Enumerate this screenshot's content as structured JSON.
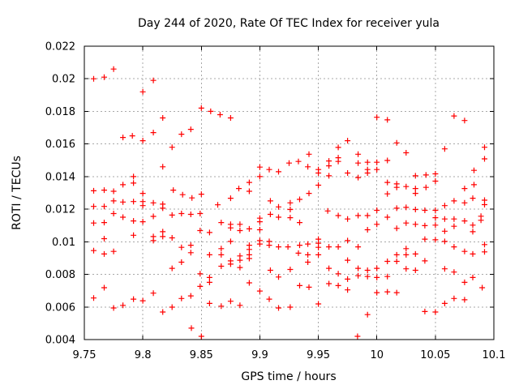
{
  "figure": {
    "background": "#ffffff",
    "axis_color": "#000000",
    "grid_color": "#a8a8a8",
    "marker_color": "#ff0000"
  },
  "chart_data": {
    "type": "scatter",
    "title": "Day 244 of 2020, Rate Of TEC Index for receiver yula",
    "xlabel": "GPS time / hours",
    "ylabel": "ROTI / TECUs",
    "xlim": [
      9.75,
      10.1
    ],
    "ylim": [
      0.004,
      0.022
    ],
    "grid": true,
    "legend": "none",
    "marker": "plus",
    "xticks": {
      "values": [
        9.75,
        9.8,
        9.85,
        9.9,
        9.95,
        10,
        10.05,
        10.1
      ],
      "labels": [
        "9.75",
        "9.8",
        "9.85",
        "9.9",
        "9.95",
        "10",
        "10.05",
        "10.1"
      ]
    },
    "yticks": {
      "values": [
        0.004,
        0.006,
        0.008,
        0.01,
        0.012,
        0.014,
        0.016,
        0.018,
        0.02,
        0.022
      ],
      "labels": [
        "0.004",
        "0.006",
        "0.008",
        "0.01",
        "0.012",
        "0.014",
        "0.016",
        "0.018",
        "0.02",
        "0.022"
      ]
    },
    "points": [
      [
        9.758,
        0.02
      ],
      [
        9.767,
        0.0201
      ],
      [
        9.775,
        0.0206
      ],
      [
        9.809,
        0.0199
      ],
      [
        9.8,
        0.0192
      ],
      [
        9.85,
        0.0182
      ],
      [
        9.858,
        0.018
      ],
      [
        9.866,
        0.0178
      ],
      [
        9.875,
        0.0176
      ],
      [
        9.817,
        0.0176
      ],
      [
        9.809,
        0.0167
      ],
      [
        9.783,
        0.0164
      ],
      [
        9.791,
        0.0165
      ],
      [
        9.8,
        0.0162
      ],
      [
        9.833,
        0.0166
      ],
      [
        9.841,
        0.0169
      ],
      [
        9.825,
        0.0158
      ],
      [
        9.817,
        0.0146
      ],
      [
        9.792,
        0.014
      ],
      [
        9.792,
        0.0136
      ],
      [
        9.783,
        0.0135
      ],
      [
        9.758,
        0.01313
      ],
      [
        9.767,
        0.01317
      ],
      [
        9.775,
        0.0131
      ],
      [
        9.8,
        0.01297
      ],
      [
        9.826,
        0.01317
      ],
      [
        9.834,
        0.01289
      ],
      [
        9.842,
        0.01269
      ],
      [
        9.85,
        0.01292
      ],
      [
        9.775,
        0.01251
      ],
      [
        9.783,
        0.01244
      ],
      [
        9.792,
        0.01247
      ],
      [
        9.8,
        0.01247
      ],
      [
        9.8,
        0.01222
      ],
      [
        9.809,
        0.01239
      ],
      [
        9.817,
        0.01231
      ],
      [
        9.817,
        0.01206
      ],
      [
        9.758,
        0.01217
      ],
      [
        9.767,
        0.01217
      ],
      [
        9.864,
        0.01227
      ],
      [
        9.775,
        0.01173
      ],
      [
        9.783,
        0.01151
      ],
      [
        9.792,
        0.01128
      ],
      [
        9.8,
        0.01123
      ],
      [
        9.809,
        0.01156
      ],
      [
        9.825,
        0.01164
      ],
      [
        9.833,
        0.01173
      ],
      [
        9.841,
        0.01168
      ],
      [
        9.849,
        0.01173
      ],
      [
        9.758,
        0.01115
      ],
      [
        9.767,
        0.01118
      ],
      [
        9.792,
        0.0104
      ],
      [
        9.817,
        0.01062
      ],
      [
        9.809,
        0.01032
      ],
      [
        9.817,
        0.01032
      ],
      [
        9.825,
        0.01024
      ],
      [
        9.809,
        0.01007
      ],
      [
        9.767,
        0.01019
      ],
      [
        9.849,
        0.01069
      ],
      [
        9.857,
        0.01057
      ],
      [
        9.758,
        0.00946
      ],
      [
        9.767,
        0.00925
      ],
      [
        9.775,
        0.00941
      ],
      [
        9.833,
        0.00966
      ],
      [
        9.841,
        0.00979
      ],
      [
        9.841,
        0.00933
      ],
      [
        9.857,
        0.0092
      ],
      [
        9.833,
        0.00875
      ],
      [
        9.825,
        0.00837
      ],
      [
        9.849,
        0.00804
      ],
      [
        9.857,
        0.00781
      ],
      [
        9.857,
        0.00751
      ],
      [
        9.849,
        0.00726
      ],
      [
        9.767,
        0.00718
      ],
      [
        9.758,
        0.00655
      ],
      [
        9.809,
        0.00685
      ],
      [
        9.792,
        0.00648
      ],
      [
        9.8,
        0.00638
      ],
      [
        9.833,
        0.00652
      ],
      [
        9.841,
        0.00668
      ],
      [
        9.775,
        0.00594
      ],
      [
        9.783,
        0.0061
      ],
      [
        9.817,
        0.00569
      ],
      [
        9.825,
        0.00599
      ],
      [
        9.857,
        0.00622
      ],
      [
        9.8415,
        0.0047
      ],
      [
        9.85,
        0.0042
      ],
      [
        9.975,
        0.0162
      ],
      [
        9.967,
        0.01579
      ],
      [
        9.942,
        0.01537
      ],
      [
        9.967,
        0.01516
      ],
      [
        9.967,
        0.01493
      ],
      [
        9.984,
        0.01537
      ],
      [
        9.959,
        0.01496
      ],
      [
        9.959,
        0.01466
      ],
      [
        9.933,
        0.01493
      ],
      [
        9.925,
        0.01483
      ],
      [
        9.941,
        0.0146
      ],
      [
        9.984,
        0.01483
      ],
      [
        9.9,
        0.01458
      ],
      [
        9.908,
        0.01443
      ],
      [
        9.916,
        0.0143
      ],
      [
        9.95,
        0.01443
      ],
      [
        9.95,
        0.01422
      ],
      [
        9.959,
        0.01405
      ],
      [
        9.9,
        0.014
      ],
      [
        9.975,
        0.01422
      ],
      [
        9.984,
        0.01394
      ],
      [
        9.95,
        0.01347
      ],
      [
        9.882,
        0.01327
      ],
      [
        9.891,
        0.01364
      ],
      [
        9.891,
        0.0131
      ],
      [
        9.942,
        0.01297
      ],
      [
        9.875,
        0.01267
      ],
      [
        9.934,
        0.0126
      ],
      [
        9.909,
        0.01251
      ],
      [
        9.926,
        0.01239
      ],
      [
        9.916,
        0.01214
      ],
      [
        9.926,
        0.01198
      ],
      [
        9.958,
        0.01189
      ],
      [
        9.909,
        0.01168
      ],
      [
        9.916,
        0.01151
      ],
      [
        9.926,
        0.01148
      ],
      [
        9.967,
        0.01161
      ],
      [
        9.975,
        0.0114
      ],
      [
        9.984,
        0.01161
      ],
      [
        9.9,
        0.01145
      ],
      [
        9.9,
        0.01123
      ],
      [
        9.867,
        0.01118
      ],
      [
        9.875,
        0.01107
      ],
      [
        9.875,
        0.01085
      ],
      [
        9.883,
        0.01107
      ],
      [
        9.891,
        0.01079
      ],
      [
        9.883,
        0.01069
      ],
      [
        9.9,
        0.01074
      ],
      [
        9.934,
        0.01118
      ],
      [
        9.875,
        0.01002
      ],
      [
        9.891,
        0.00979
      ],
      [
        9.891,
        0.00953
      ],
      [
        9.9,
        0.01007
      ],
      [
        9.9,
        0.00986
      ],
      [
        9.908,
        0.01002
      ],
      [
        9.908,
        0.00979
      ],
      [
        9.916,
        0.00969
      ],
      [
        9.924,
        0.00969
      ],
      [
        9.934,
        0.00979
      ],
      [
        9.941,
        0.00986
      ],
      [
        9.95,
        0.01016
      ],
      [
        9.95,
        0.00991
      ],
      [
        9.95,
        0.00966
      ],
      [
        9.959,
        0.00969
      ],
      [
        9.967,
        0.00969
      ],
      [
        9.975,
        0.01007
      ],
      [
        9.984,
        0.00969
      ],
      [
        9.933,
        0.0093
      ],
      [
        9.941,
        0.0092
      ],
      [
        9.95,
        0.0092
      ],
      [
        9.975,
        0.00887
      ],
      [
        9.941,
        0.00875
      ],
      [
        9.867,
        0.00958
      ],
      [
        9.867,
        0.0092
      ],
      [
        9.875,
        0.00883
      ],
      [
        9.875,
        0.00863
      ],
      [
        9.883,
        0.00913
      ],
      [
        9.883,
        0.00887
      ],
      [
        9.891,
        0.0092
      ],
      [
        9.891,
        0.00897
      ],
      [
        9.867,
        0.0085
      ],
      [
        9.883,
        0.00842
      ],
      [
        9.909,
        0.00825
      ],
      [
        9.926,
        0.0083
      ],
      [
        9.916,
        0.00784
      ],
      [
        9.959,
        0.00837
      ],
      [
        9.984,
        0.00837
      ],
      [
        9.984,
        0.00792
      ],
      [
        9.967,
        0.00804
      ],
      [
        9.975,
        0.00771
      ],
      [
        9.891,
        0.00748
      ],
      [
        9.934,
        0.00731
      ],
      [
        9.942,
        0.00721
      ],
      [
        9.959,
        0.00743
      ],
      [
        9.967,
        0.00731
      ],
      [
        9.975,
        0.00705
      ],
      [
        9.9,
        0.00698
      ],
      [
        9.908,
        0.00648
      ],
      [
        9.867,
        0.00605
      ],
      [
        9.875,
        0.00635
      ],
      [
        9.883,
        0.0061
      ],
      [
        9.916,
        0.00594
      ],
      [
        9.926,
        0.00599
      ],
      [
        9.95,
        0.00619
      ],
      [
        9.9835,
        0.0042
      ],
      [
        10.0,
        0.01764
      ],
      [
        10.009,
        0.01748
      ],
      [
        10.066,
        0.01772
      ],
      [
        10.075,
        0.01744
      ],
      [
        10.017,
        0.01607
      ],
      [
        10.025,
        0.01546
      ],
      [
        10.058,
        0.0157
      ],
      [
        10.009,
        0.01499
      ],
      [
        10.092,
        0.01509
      ],
      [
        10.092,
        0.0158
      ],
      [
        9.992,
        0.01488
      ],
      [
        10.0,
        0.01488
      ],
      [
        9.992,
        0.01443
      ],
      [
        9.992,
        0.01422
      ],
      [
        10.0,
        0.01443
      ],
      [
        10.083,
        0.01438
      ],
      [
        10.033,
        0.01405
      ],
      [
        10.042,
        0.0141
      ],
      [
        10.05,
        0.01417
      ],
      [
        10.05,
        0.01372
      ],
      [
        10.009,
        0.01364
      ],
      [
        10.017,
        0.01355
      ],
      [
        10.017,
        0.01334
      ],
      [
        10.025,
        0.01339
      ],
      [
        10.033,
        0.01327
      ],
      [
        10.042,
        0.01334
      ],
      [
        10.075,
        0.01327
      ],
      [
        10.083,
        0.0135
      ],
      [
        10.033,
        0.01297
      ],
      [
        10.009,
        0.01294
      ],
      [
        10.082,
        0.01267
      ],
      [
        10.058,
        0.01222
      ],
      [
        10.066,
        0.01251
      ],
      [
        10.075,
        0.01239
      ],
      [
        10.017,
        0.01206
      ],
      [
        10.025,
        0.01211
      ],
      [
        10.033,
        0.01198
      ],
      [
        10.041,
        0.01193
      ],
      [
        10.05,
        0.01193
      ],
      [
        10.0,
        0.01193
      ],
      [
        9.992,
        0.01161
      ],
      [
        10.0,
        0.01107
      ],
      [
        10.009,
        0.01151
      ],
      [
        10.05,
        0.01148
      ],
      [
        10.05,
        0.01102
      ],
      [
        10.058,
        0.0114
      ],
      [
        10.066,
        0.0114
      ],
      [
        10.066,
        0.01095
      ],
      [
        10.075,
        0.01128
      ],
      [
        10.025,
        0.01115
      ],
      [
        10.033,
        0.01107
      ],
      [
        10.041,
        0.01099
      ],
      [
        10.017,
        0.01082
      ],
      [
        9.992,
        0.01074
      ],
      [
        10.082,
        0.01102
      ],
      [
        10.082,
        0.01062
      ],
      [
        10.058,
        0.01065
      ],
      [
        10.041,
        0.01016
      ],
      [
        10.05,
        0.01012
      ],
      [
        10.058,
        0.01002
      ],
      [
        10.066,
        0.00969
      ],
      [
        10.025,
        0.00958
      ],
      [
        10.075,
        0.00941
      ],
      [
        10.082,
        0.00925
      ],
      [
        10.017,
        0.0092
      ],
      [
        10.017,
        0.0088
      ],
      [
        10.025,
        0.0092
      ],
      [
        10.033,
        0.00925
      ],
      [
        10.009,
        0.0088
      ],
      [
        10.041,
        0.00883
      ],
      [
        10.0,
        0.00837
      ],
      [
        9.992,
        0.00825
      ],
      [
        9.992,
        0.00787
      ],
      [
        10.0,
        0.00781
      ],
      [
        10.009,
        0.00787
      ],
      [
        10.025,
        0.00834
      ],
      [
        10.033,
        0.00825
      ],
      [
        10.058,
        0.00834
      ],
      [
        10.066,
        0.00814
      ],
      [
        10.082,
        0.00781
      ],
      [
        10.075,
        0.00751
      ],
      [
        10.0,
        0.00688
      ],
      [
        10.009,
        0.00693
      ],
      [
        10.017,
        0.00688
      ],
      [
        10.058,
        0.00622
      ],
      [
        10.066,
        0.00652
      ],
      [
        10.075,
        0.00644
      ],
      [
        10.041,
        0.00572
      ],
      [
        10.05,
        0.00569
      ],
      [
        9.992,
        0.00553
      ],
      [
        10.092,
        0.01255
      ],
      [
        10.092,
        0.01228
      ],
      [
        10.089,
        0.01157
      ],
      [
        10.089,
        0.01132
      ],
      [
        10.092,
        0.00983
      ],
      [
        10.092,
        0.00938
      ],
      [
        10.09,
        0.00718
      ]
    ]
  }
}
